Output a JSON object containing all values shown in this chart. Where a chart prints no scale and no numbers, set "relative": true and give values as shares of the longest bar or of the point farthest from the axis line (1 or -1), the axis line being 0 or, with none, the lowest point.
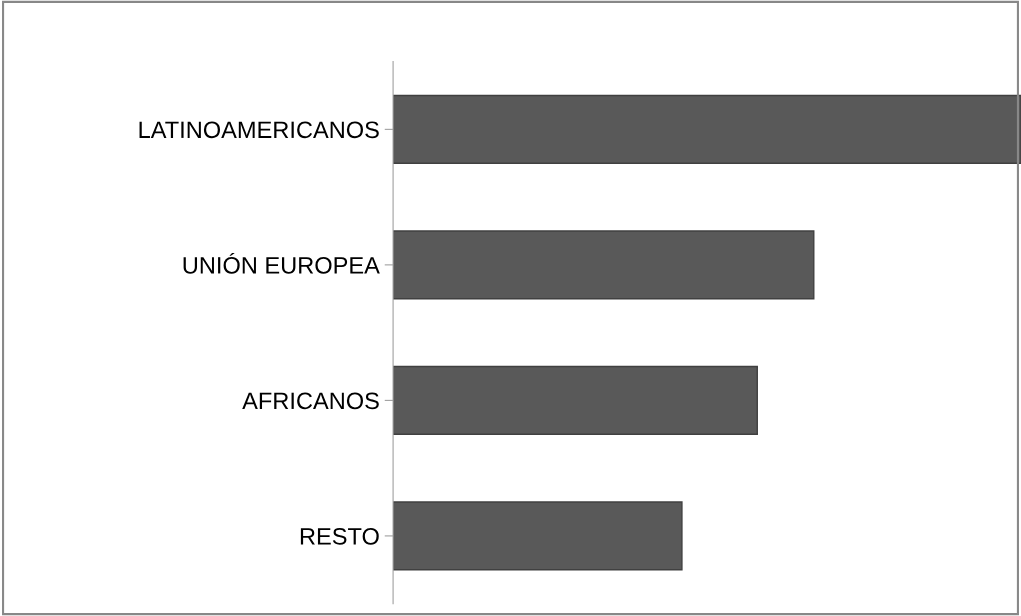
{
  "chart_data": {
    "type": "bar",
    "orientation": "horizontal",
    "relative": true,
    "categories": [
      "LATINOAMERICANOS",
      "UNIÓN EUROPEA",
      "AFRICANOS",
      "RESTO"
    ],
    "values": [
      1,
      0.67,
      0.58,
      0.46
    ],
    "color": "#595959"
  }
}
